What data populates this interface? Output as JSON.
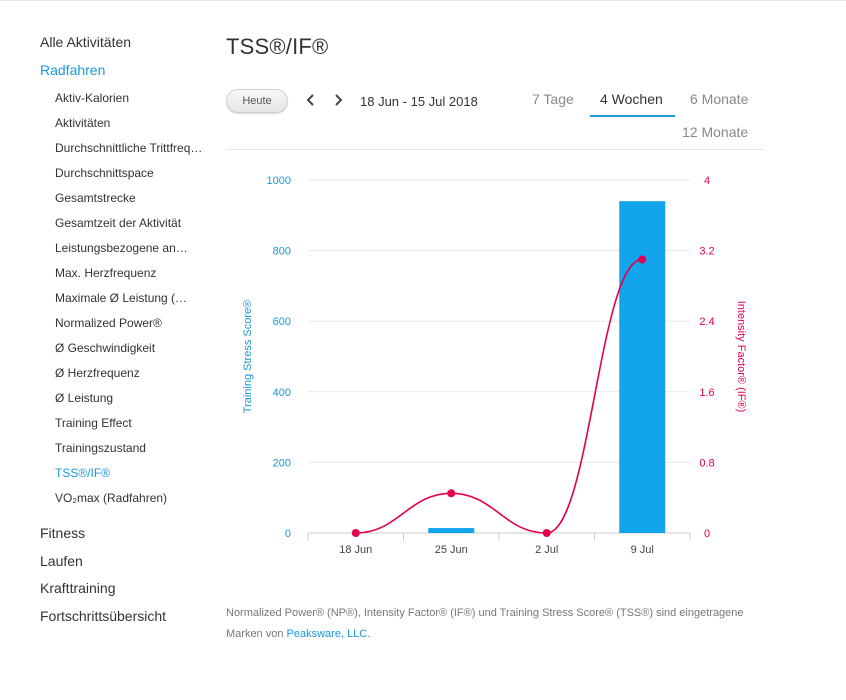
{
  "sidebar": {
    "categories_top": [
      {
        "label": "Alle Aktivitäten"
      },
      {
        "label": "Radfahren",
        "active": true
      }
    ],
    "items": [
      {
        "label": "Aktiv-Kalorien"
      },
      {
        "label": "Aktivitäten"
      },
      {
        "label": "Durchschnittliche Trittfrequenz"
      },
      {
        "label": "Durchschnittspace"
      },
      {
        "label": "Gesamtstrecke"
      },
      {
        "label": "Gesamtzeit der Aktivität"
      },
      {
        "label": "Leistungsbezogene an"
      },
      {
        "label": "Max. Herzfrequenz"
      },
      {
        "label": "Maximale Ø Leistung ("
      },
      {
        "label": "Normalized Power®"
      },
      {
        "label": "Ø Geschwindigkeit"
      },
      {
        "label": "Ø Herzfrequenz"
      },
      {
        "label": "Ø Leistung"
      },
      {
        "label": "Training Effect"
      },
      {
        "label": "Trainingszustand"
      },
      {
        "label": "TSS®/IF®",
        "active": true
      },
      {
        "label": "VO₂max (Radfahren)"
      }
    ],
    "categories_bottom": [
      {
        "label": "Fitness"
      },
      {
        "label": "Laufen"
      },
      {
        "label": "Krafttraining"
      },
      {
        "label": "Fortschrittsübersicht"
      }
    ]
  },
  "page": {
    "title": "TSS®/IF®",
    "today_button": "Heute",
    "date_range": "18 Jun - 15 Jul 2018",
    "period_tabs": [
      {
        "label": "7 Tage"
      },
      {
        "label": "4 Wochen",
        "active": true
      },
      {
        "label": "6 Monate"
      },
      {
        "label": "12 Monate"
      }
    ]
  },
  "colors": {
    "accent": "#1a9ad6",
    "bar": "#13a5ec",
    "line": "#e4004f"
  },
  "icons": {
    "prev": "chevron-left-icon",
    "next": "chevron-right-icon"
  },
  "chart_data": {
    "type": "bar",
    "categories": [
      "18 Jun",
      "25 Jun",
      "2 Jul",
      "9 Jul"
    ],
    "series": [
      {
        "name": "Training Stress Score®",
        "type": "bar",
        "axis": "left",
        "values": [
          0,
          14,
          0,
          940
        ]
      },
      {
        "name": "Intensity Factor® (IF®)",
        "type": "line",
        "axis": "right",
        "values": [
          0,
          0.45,
          0,
          3.1
        ]
      }
    ],
    "ylabel_left": "Training Stress Score®",
    "ylabel_right": "Intensity Factor® (IF®)",
    "ylim_left": [
      0,
      1000
    ],
    "yticks_left": [
      "0",
      "200",
      "400",
      "600",
      "800",
      "1000"
    ],
    "ylim_right": [
      0,
      4
    ],
    "yticks_right": [
      "0",
      "0.8",
      "1.6",
      "2.4",
      "3.2",
      "4"
    ],
    "grid": true,
    "legend": "none"
  },
  "footnote": {
    "text": "Normalized Power® (NP®), Intensity Factor® (IF®) und Training Stress Score® (TSS®) sind eingetragene Marken von ",
    "link": "Peaksware, LLC",
    "end": "."
  }
}
